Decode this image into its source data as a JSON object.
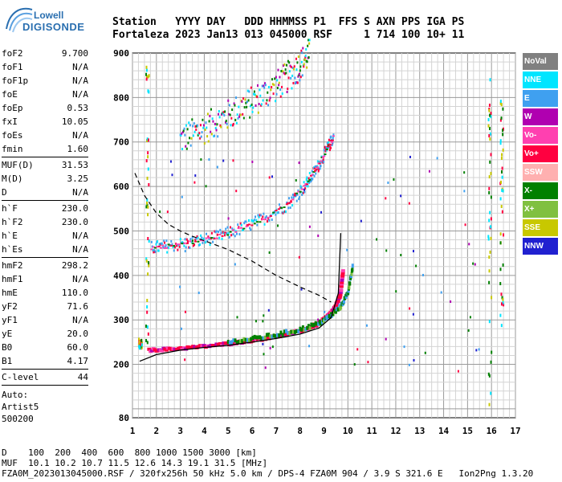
{
  "logo": {
    "line1": "Lowell",
    "line2": "DIGISONDE"
  },
  "header": {
    "line1": "Station   YYYY DAY   DDD HHMMSS P1  FFS S AXN PPS IGA PS",
    "line2": "Fortaleza 2023 Jan13 013 045000 RSF     1 714 100 10+ 11"
  },
  "params": {
    "group1": [
      {
        "name": "foF2",
        "value": "9.700"
      },
      {
        "name": "foF1",
        "value": "N/A"
      },
      {
        "name": "foF1p",
        "value": "N/A"
      },
      {
        "name": "foE",
        "value": "N/A"
      },
      {
        "name": "foEp",
        "value": "0.53"
      },
      {
        "name": "fxI",
        "value": "10.05"
      },
      {
        "name": "foEs",
        "value": "N/A"
      },
      {
        "name": "fmin",
        "value": "1.60"
      }
    ],
    "group2": [
      {
        "name": "MUF(D)",
        "value": "31.53"
      },
      {
        "name": "M(D)",
        "value": "3.25"
      },
      {
        "name": "D",
        "value": "N/A"
      }
    ],
    "group3": [
      {
        "name": "h`F",
        "value": "230.0"
      },
      {
        "name": "h`F2",
        "value": "230.0"
      },
      {
        "name": "h`E",
        "value": "N/A"
      },
      {
        "name": "h`Es",
        "value": "N/A"
      }
    ],
    "group4": [
      {
        "name": "hmF2",
        "value": "298.2"
      },
      {
        "name": "hmF1",
        "value": "N/A"
      },
      {
        "name": "hmE",
        "value": "110.0"
      },
      {
        "name": "yF2",
        "value": "71.6"
      },
      {
        "name": "yF1",
        "value": "N/A"
      },
      {
        "name": "yE",
        "value": "20.0"
      },
      {
        "name": "B0",
        "value": "60.0"
      },
      {
        "name": "B1",
        "value": "4.17"
      }
    ],
    "group5": [
      {
        "name": "C-level",
        "value": "44"
      }
    ],
    "auto": [
      "Auto:",
      "Artist5",
      "500200"
    ]
  },
  "legend": [
    {
      "label": "NoVal",
      "color": "#808080"
    },
    {
      "label": "NNE",
      "color": "#00e5ff"
    },
    {
      "label": "E",
      "color": "#3fa0f0"
    },
    {
      "label": "W",
      "color": "#b000b0"
    },
    {
      "label": "Vo-",
      "color": "#ff40b0"
    },
    {
      "label": "Vo+",
      "color": "#ff0040"
    },
    {
      "label": "SSW",
      "color": "#ffb0b0"
    },
    {
      "label": "X-",
      "color": "#008000"
    },
    {
      "label": "X+",
      "color": "#80c040"
    },
    {
      "label": "SSE",
      "color": "#c8c800"
    },
    {
      "label": "NNW",
      "color": "#2020d0"
    }
  ],
  "footer": {
    "line1": "D    100  200  400  600  800 1000 1500 3000 [km]",
    "line2": "MUF  10.1 10.2 10.7 11.5 12.6 14.3 19.1 31.5 [MHz]",
    "line3": "FZA0M_2023013045000.RSF / 320fx256h 50 kHz 5.0 km / DPS-4 FZA0M 904 / 3.9 S 321.6 E   Ion2Png 1.3.20"
  },
  "chart_data": {
    "type": "scatter",
    "xlim": [
      1,
      17
    ],
    "ylim": [
      80,
      900
    ],
    "x_ticks": [
      "1",
      "2",
      "3",
      "4",
      "5",
      "6",
      "7",
      "8",
      "9",
      "10",
      "11",
      "12",
      "13",
      "14",
      "15",
      "16",
      "17"
    ],
    "y_ticks": [
      "80",
      "200",
      "300",
      "400",
      "500",
      "600",
      "700",
      "800",
      "900"
    ],
    "grid": true,
    "trace_F2_O": {
      "x": [
        1.7,
        2.5,
        3.5,
        4.5,
        5.5,
        6.5,
        7.5,
        8.3,
        8.8,
        9.2,
        9.5,
        9.7,
        9.8
      ],
      "y": [
        232,
        234,
        238,
        243,
        250,
        258,
        268,
        280,
        292,
        310,
        330,
        360,
        410
      ]
    },
    "trace_F2_X": {
      "x": [
        5.0,
        6.0,
        7.0,
        8.0,
        8.8,
        9.3,
        9.7,
        10.0,
        10.2
      ],
      "y": [
        250,
        257,
        266,
        278,
        292,
        310,
        330,
        360,
        420
      ]
    },
    "trace_F2_second_hop": {
      "x": [
        1.8,
        2.5,
        3.5,
        4.5,
        5.5,
        6.5,
        7.5,
        8.2,
        8.7,
        9.1,
        9.4
      ],
      "y": [
        462,
        466,
        474,
        486,
        504,
        528,
        560,
        600,
        640,
        680,
        710
      ]
    },
    "trace_F2_third_hop": {
      "x": [
        3.0,
        4.0,
        5.0,
        6.0,
        7.0,
        7.8,
        8.4
      ],
      "y": [
        705,
        730,
        760,
        790,
        825,
        860,
        900
      ]
    },
    "profile_solid": {
      "x": [
        1.3,
        2.0,
        3.0,
        4.0,
        5.0,
        6.0,
        7.0,
        8.0,
        8.8,
        9.3,
        9.6,
        9.7
      ],
      "y": [
        207,
        222,
        232,
        238,
        243,
        250,
        258,
        268,
        282,
        305,
        360,
        495
      ]
    },
    "profile_dashed": {
      "x": [
        1.1,
        1.5,
        2.0,
        2.5,
        3.0,
        3.5,
        4.0,
        5.0,
        6.0,
        7.0,
        8.0,
        8.8,
        9.3
      ],
      "y": [
        630,
        580,
        540,
        515,
        500,
        488,
        478,
        458,
        432,
        400,
        374,
        355,
        340
      ]
    }
  }
}
